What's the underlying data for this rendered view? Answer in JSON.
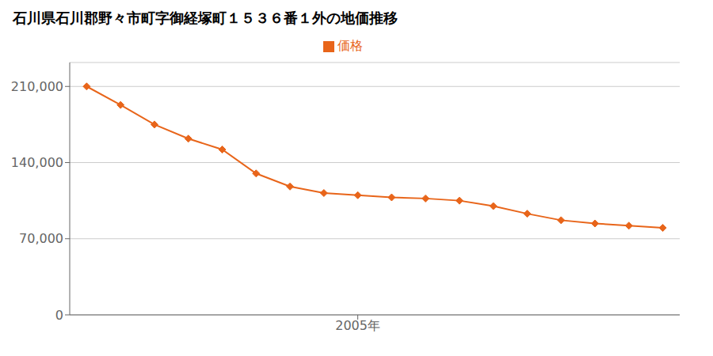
{
  "chart_data": {
    "type": "line",
    "title": "石川県石川郡野々市町字御経塚町１５３６番１外の地価推移",
    "x": [
      1997,
      1998,
      1999,
      2000,
      2001,
      2002,
      2003,
      2004,
      2005,
      2006,
      2007,
      2008,
      2009,
      2010,
      2011,
      2012,
      2013,
      2014
    ],
    "series": [
      {
        "name": "価格",
        "color": "#e8651a",
        "marker": "diamond",
        "values": [
          210000,
          193000,
          175000,
          162000,
          152000,
          130000,
          118000,
          112000,
          110000,
          108000,
          107000,
          105000,
          100000,
          93000,
          87000,
          84000,
          82000,
          80000
        ]
      }
    ],
    "xlim": [
      1996.5,
      2014.5
    ],
    "xticks": [
      {
        "value": 2005,
        "label": "2005年"
      }
    ],
    "ylim": [
      0,
      232000
    ],
    "yticks": [
      0,
      {
        "value": 70000,
        "label": "70,000"
      },
      {
        "value": 140000,
        "label": "140,000"
      },
      {
        "value": 210000,
        "label": "210,000"
      }
    ],
    "grid": "y",
    "legend": "top"
  }
}
